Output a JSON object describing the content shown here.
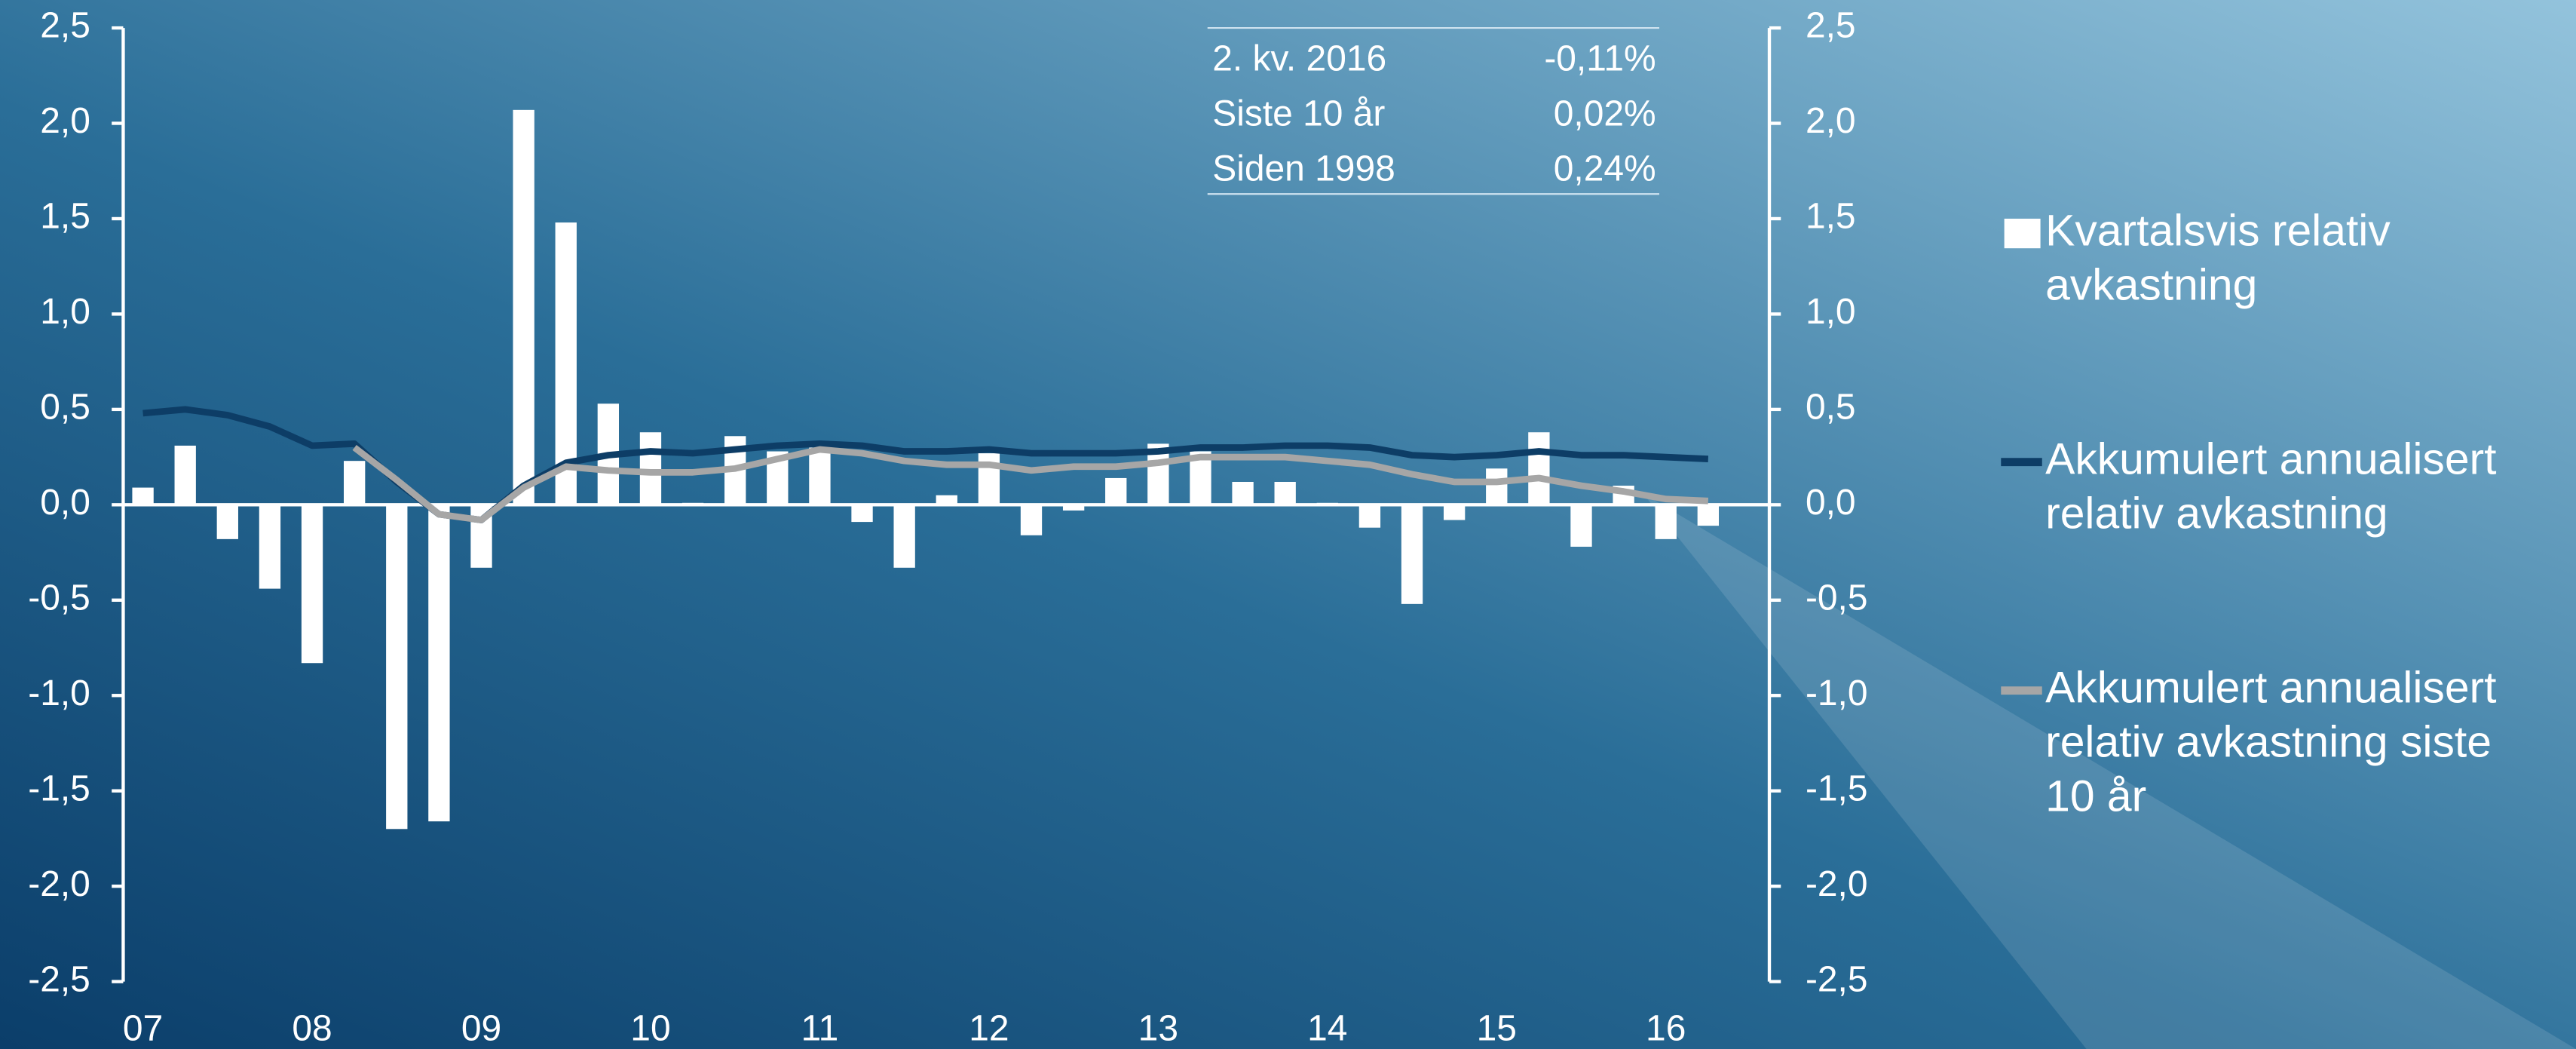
{
  "chart_data": {
    "type": "bar",
    "categories": [
      "07",
      null,
      null,
      null,
      "08",
      null,
      null,
      null,
      "09",
      null,
      null,
      null,
      "10",
      null,
      null,
      null,
      "11",
      null,
      null,
      null,
      "12",
      null,
      null,
      null,
      "13",
      null,
      null,
      null,
      "14",
      null,
      null,
      null,
      "15",
      null,
      null,
      null,
      "16",
      null
    ],
    "series": [
      {
        "name": "Kvartalsvis relativ avkastning",
        "type": "bar",
        "color": "#ffffff",
        "values": [
          0.09,
          0.31,
          -0.18,
          -0.44,
          -0.83,
          0.23,
          -1.7,
          -1.66,
          -0.33,
          2.07,
          1.48,
          0.53,
          0.38,
          0.01,
          0.36,
          0.28,
          0.3,
          -0.09,
          -0.33,
          0.05,
          0.27,
          -0.16,
          -0.03,
          0.14,
          0.32,
          0.28,
          0.12,
          0.12,
          0.01,
          -0.12,
          -0.52,
          -0.08,
          0.19,
          0.38,
          -0.22,
          0.1,
          -0.18,
          -0.11
        ]
      },
      {
        "name": "Akkumulert annualisert relativ avkastning",
        "type": "line",
        "color": "#0d3d66",
        "values": [
          0.48,
          0.5,
          0.47,
          0.41,
          0.31,
          0.32,
          0.12,
          -0.05,
          -0.08,
          0.1,
          0.22,
          0.26,
          0.28,
          0.27,
          0.29,
          0.31,
          0.32,
          0.31,
          0.28,
          0.28,
          0.29,
          0.27,
          0.27,
          0.27,
          0.28,
          0.3,
          0.3,
          0.31,
          0.31,
          0.3,
          0.26,
          0.25,
          0.26,
          0.28,
          0.26,
          0.26,
          0.25,
          0.24
        ]
      },
      {
        "name": "Akkumulert annualisert relativ avkastning siste 10 år",
        "type": "line",
        "color": "#a6a6a6",
        "values": [
          null,
          null,
          null,
          null,
          null,
          0.3,
          0.13,
          -0.05,
          -0.08,
          0.09,
          0.2,
          0.18,
          0.17,
          0.17,
          0.19,
          0.24,
          0.29,
          0.27,
          0.23,
          0.21,
          0.21,
          0.18,
          0.2,
          0.2,
          0.22,
          0.25,
          0.25,
          0.25,
          0.23,
          0.21,
          0.16,
          0.12,
          0.12,
          0.14,
          0.1,
          0.07,
          0.03,
          0.02
        ]
      }
    ],
    "ylim": [
      -2.5,
      2.5
    ],
    "yticks": [
      {
        "value": -2.5,
        "label": "-2,5"
      },
      {
        "value": -2,
        "label": "-2,0"
      },
      {
        "value": -1.5,
        "label": "-1,5"
      },
      {
        "value": -1,
        "label": "-1,0"
      },
      {
        "value": -0.5,
        "label": "-0,5"
      },
      {
        "value": 0,
        "label": "0,0"
      },
      {
        "value": 0.5,
        "label": "0,5"
      },
      {
        "value": 1,
        "label": "1,0"
      },
      {
        "value": 1.5,
        "label": "1,5"
      },
      {
        "value": 2,
        "label": "2,0"
      },
      {
        "value": 2.5,
        "label": "2,5"
      }
    ],
    "y2lim": [
      -2.5,
      2.5
    ],
    "y2ticks": [
      {
        "value": -2.5,
        "label": "-2,5"
      },
      {
        "value": -2,
        "label": "-2,0"
      },
      {
        "value": -1.5,
        "label": "-1,5"
      },
      {
        "value": -1,
        "label": "-1,0"
      },
      {
        "value": -0.5,
        "label": "-0,5"
      },
      {
        "value": 0,
        "label": "0,0"
      },
      {
        "value": 0.5,
        "label": "0,5"
      },
      {
        "value": 1,
        "label": "1,0"
      },
      {
        "value": 1.5,
        "label": "1,5"
      },
      {
        "value": 2,
        "label": "2,0"
      },
      {
        "value": 2.5,
        "label": "2,5"
      }
    ],
    "legend": "right",
    "info_table": {
      "rows": [
        [
          "2. kv. 2016",
          "-0,11%"
        ],
        [
          "Siste 10 år",
          "0,02%"
        ],
        [
          "Siden 1998",
          "0,24%"
        ]
      ]
    }
  }
}
